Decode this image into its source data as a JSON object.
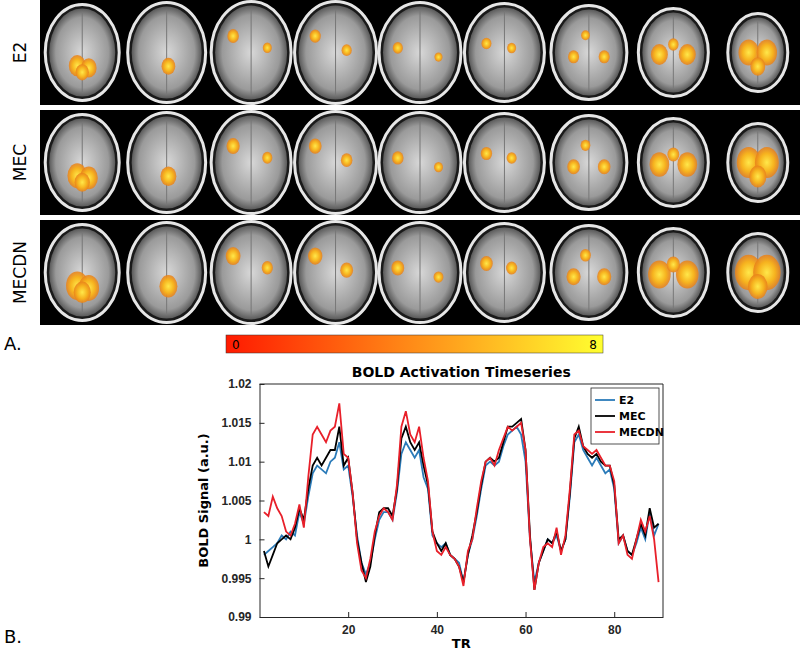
{
  "panel_a": {
    "label": "A.",
    "rows": [
      "E2",
      "MEC",
      "MECDN"
    ],
    "colorbar": {
      "range": [
        0,
        8
      ],
      "ticks": [
        0,
        8
      ]
    }
  },
  "chart_data": {
    "type": "line",
    "panel_label": "B.",
    "title": "BOLD Activation Timeseries",
    "x_label": "TR",
    "y_label": "BOLD Signal (a.u.)",
    "x": [
      1,
      2,
      3,
      4,
      5,
      6,
      7,
      8,
      9,
      10,
      11,
      12,
      13,
      14,
      15,
      16,
      17,
      18,
      19,
      20,
      21,
      22,
      23,
      24,
      25,
      26,
      27,
      28,
      29,
      30,
      31,
      32,
      33,
      34,
      35,
      36,
      37,
      38,
      39,
      40,
      41,
      42,
      43,
      44,
      45,
      46,
      47,
      48,
      49,
      50,
      51,
      52,
      53,
      54,
      55,
      56,
      57,
      58,
      59,
      60,
      61,
      62,
      63,
      64,
      65,
      66,
      67,
      68,
      69,
      70,
      71,
      72,
      73,
      74,
      75,
      76,
      77,
      78,
      79,
      80,
      81,
      82,
      83,
      84,
      85,
      86,
      87,
      88,
      89,
      90
    ],
    "xlim": [
      0,
      91
    ],
    "xticks": [
      20,
      40,
      60,
      80
    ],
    "ylim": [
      0.99,
      1.02
    ],
    "yticks": [
      0.99,
      0.995,
      1,
      1.005,
      1.01,
      1.015,
      1.02
    ],
    "grid": false,
    "legend": "upper right",
    "series": [
      {
        "name": "E2",
        "color": "#2b7bb9",
        "values": [
          0.998,
          0.9985,
          0.999,
          0.9995,
          1.0005,
          1.0,
          1.001,
          1.0005,
          1.0035,
          1.002,
          1.0055,
          1.0085,
          1.0095,
          1.009,
          1.0085,
          1.01,
          1.0105,
          1.0125,
          1.009,
          1.0095,
          1.0055,
          1.0005,
          0.997,
          0.9955,
          0.997,
          1.0,
          1.0025,
          1.0035,
          1.0035,
          1.0025,
          1.006,
          1.011,
          1.0125,
          1.0115,
          1.0105,
          1.0115,
          1.008,
          1.0065,
          1.0005,
          0.9995,
          0.999,
          0.9995,
          0.998,
          0.9975,
          0.997,
          0.9945,
          0.998,
          1.0,
          1.003,
          1.0065,
          1.0095,
          1.01,
          1.0095,
          1.01,
          1.012,
          1.0135,
          1.014,
          1.0145,
          1.0135,
          1.01,
          1.0,
          0.9945,
          0.997,
          0.9985,
          1.0,
          0.9995,
          1.0005,
          0.9985,
          1.0,
          1.0055,
          1.0125,
          1.0135,
          1.0115,
          1.0105,
          1.0095,
          1.0105,
          1.0095,
          1.0085,
          1.009,
          1.0065,
          0.9995,
          1.0005,
          0.9985,
          0.998,
          0.9995,
          1.0015,
          1.0,
          1.0035,
          1.0005,
          1.002
        ]
      },
      {
        "name": "MEC",
        "color": "#000000",
        "values": [
          0.9985,
          0.9965,
          0.998,
          0.9995,
          1.0,
          1.0005,
          1.0,
          1.0015,
          1.004,
          1.0025,
          1.0065,
          1.0095,
          1.0105,
          1.0095,
          1.0105,
          1.0115,
          1.0115,
          1.0145,
          1.0095,
          1.0105,
          1.006,
          1.0,
          0.997,
          0.9945,
          0.9965,
          1.0005,
          1.0035,
          1.004,
          1.004,
          1.003,
          1.0065,
          1.013,
          1.0145,
          1.0125,
          1.0115,
          1.0125,
          1.0095,
          1.007,
          1.001,
          0.9995,
          0.9985,
          0.9995,
          0.998,
          0.9975,
          0.9965,
          0.9945,
          0.998,
          1.0005,
          1.0035,
          1.007,
          1.01,
          1.0105,
          1.01,
          1.0105,
          1.0125,
          1.0145,
          1.0145,
          1.015,
          1.0155,
          1.0115,
          1.0005,
          0.9935,
          0.997,
          0.9985,
          1.0,
          0.9995,
          1.001,
          0.9985,
          1.0,
          1.006,
          1.013,
          1.0145,
          1.012,
          1.011,
          1.0105,
          1.011,
          1.01,
          1.0095,
          1.0095,
          1.007,
          1.0,
          1.0005,
          0.9985,
          0.998,
          1.0,
          1.002,
          1.0005,
          1.004,
          1.0015,
          1.002
        ]
      },
      {
        "name": "MECDN",
        "color": "#e8202a",
        "values": [
          1.0035,
          1.003,
          1.0055,
          1.004,
          1.003,
          1.001,
          1.0005,
          1.002,
          1.0045,
          1.0015,
          1.008,
          1.0135,
          1.0145,
          1.0135,
          1.0125,
          1.014,
          1.0145,
          1.0175,
          1.011,
          1.0105,
          1.006,
          0.9995,
          0.996,
          0.995,
          0.9975,
          1.001,
          1.003,
          1.004,
          1.0035,
          1.0025,
          1.007,
          1.0145,
          1.0165,
          1.0135,
          1.0125,
          1.0145,
          1.0105,
          1.0075,
          1.001,
          0.9985,
          0.998,
          0.999,
          0.998,
          0.9975,
          0.9965,
          0.994,
          0.9985,
          1.0,
          1.004,
          1.0075,
          1.01,
          1.0105,
          1.0095,
          1.0115,
          1.013,
          1.0145,
          1.014,
          1.0145,
          1.015,
          1.0115,
          1.0,
          0.9935,
          0.997,
          0.999,
          0.9995,
          0.999,
          1.0015,
          0.998,
          1.0005,
          1.0065,
          1.0135,
          1.014,
          1.012,
          1.0115,
          1.011,
          1.0115,
          1.0105,
          1.0095,
          1.0095,
          1.0075,
          0.9995,
          1.0005,
          0.998,
          0.9975,
          1.0,
          1.0025,
          1.001,
          1.003,
          1.0,
          0.9945
        ]
      }
    ]
  }
}
